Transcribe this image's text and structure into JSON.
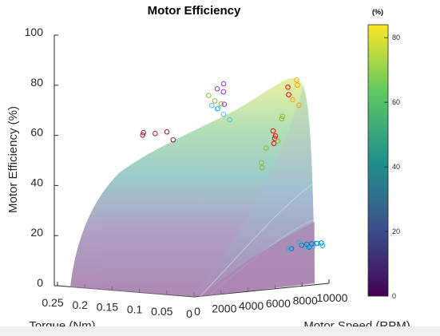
{
  "chart_data": {
    "type": "surface",
    "title": "Motor Efficiency",
    "xlabel": "Torque (Nm)",
    "ylabel": "Motor Speed (RPM)",
    "zlabel": "Motor Efficiency (%)",
    "torque_ticks": [
      "0.25",
      "0.2",
      "0.15",
      "0.1",
      "0.05",
      "0"
    ],
    "speed_ticks": [
      "0",
      "2000",
      "4000",
      "6000",
      "8000",
      "10000"
    ],
    "efficiency_ticks": [
      "0",
      "20",
      "40",
      "60",
      "80",
      "100"
    ],
    "torque_range": [
      0,
      0.25
    ],
    "speed_range": [
      0,
      10000
    ],
    "efficiency_range": [
      0,
      100
    ],
    "colorbar": {
      "title": "(%)",
      "ticks": [
        "0",
        "20",
        "40",
        "60",
        "80"
      ],
      "range": [
        0,
        84
      ],
      "colormap": [
        "#440154",
        "#3b528b",
        "#21908c",
        "#5dc863",
        "#fde725"
      ]
    },
    "measured_series": [
      {
        "color": "#ff0000",
        "points": [
          {
            "torque": 0.02,
            "speed": 8000,
            "efficiency": 79
          },
          {
            "torque": 0.02,
            "speed": 8000,
            "efficiency": 76
          },
          {
            "torque": 0.05,
            "speed": 8000,
            "efficiency": 61
          },
          {
            "torque": 0.05,
            "speed": 8000,
            "efficiency": 56
          },
          {
            "torque": 0.05,
            "speed": 8000,
            "efficiency": 58
          },
          {
            "torque": 0.05,
            "speed": 8000,
            "efficiency": 59
          }
        ]
      },
      {
        "color": "#ffa500",
        "points": [
          {
            "torque": 0.01,
            "speed": 8000,
            "efficiency": 82
          },
          {
            "torque": 0.01,
            "speed": 8000,
            "efficiency": 80
          },
          {
            "torque": 0.02,
            "speed": 8000,
            "efficiency": 74
          },
          {
            "torque": 0.01,
            "speed": 8000,
            "efficiency": 72
          }
        ]
      },
      {
        "color": "#9a2fc9",
        "points": [
          {
            "torque": 0.1,
            "speed": 6000,
            "efficiency": 80
          },
          {
            "torque": 0.1,
            "speed": 6000,
            "efficiency": 78
          },
          {
            "torque": 0.09,
            "speed": 6000,
            "efficiency": 77
          },
          {
            "torque": 0.09,
            "speed": 6000,
            "efficiency": 72
          }
        ]
      },
      {
        "color": "#7fbf30",
        "points": [
          {
            "torque": 0.12,
            "speed": 6000,
            "efficiency": 75
          },
          {
            "torque": 0.11,
            "speed": 6000,
            "efficiency": 73
          },
          {
            "torque": 0.1,
            "speed": 6000,
            "efficiency": 72
          },
          {
            "torque": 0.04,
            "speed": 8000,
            "efficiency": 66
          },
          {
            "torque": 0.04,
            "speed": 8000,
            "efficiency": 67
          },
          {
            "torque": 0.05,
            "speed": 8000,
            "efficiency": 57
          },
          {
            "torque": 0.06,
            "speed": 8000,
            "efficiency": 54
          },
          {
            "torque": 0.07,
            "speed": 8000,
            "efficiency": 48
          },
          {
            "torque": 0.07,
            "speed": 8000,
            "efficiency": 46
          }
        ]
      },
      {
        "color": "#4dbeee",
        "points": [
          {
            "torque": 0.12,
            "speed": 6000,
            "efficiency": 71
          },
          {
            "torque": 0.11,
            "speed": 6000,
            "efficiency": 70
          },
          {
            "torque": 0.1,
            "speed": 6000,
            "efficiency": 70
          },
          {
            "torque": 0.09,
            "speed": 6000,
            "efficiency": 68
          },
          {
            "torque": 0.08,
            "speed": 6000,
            "efficiency": 66
          }
        ]
      },
      {
        "color": "#a2142f",
        "points": [
          {
            "torque": 0.19,
            "speed": 4000,
            "efficiency": 59
          },
          {
            "torque": 0.19,
            "speed": 4000,
            "efficiency": 60
          },
          {
            "torque": 0.17,
            "speed": 4000,
            "efficiency": 60
          },
          {
            "torque": 0.15,
            "speed": 4000,
            "efficiency": 61
          },
          {
            "torque": 0.14,
            "speed": 4000,
            "efficiency": 58
          }
        ]
      },
      {
        "color": "#0072bd",
        "points": [
          {
            "torque": 0.01,
            "speed": 7500,
            "efficiency": 15
          },
          {
            "torque": 0.01,
            "speed": 8200,
            "efficiency": 16
          },
          {
            "torque": 0.01,
            "speed": 8700,
            "efficiency": 15
          },
          {
            "torque": 0.01,
            "speed": 9000,
            "efficiency": 16
          },
          {
            "torque": 0.01,
            "speed": 9300,
            "efficiency": 16
          },
          {
            "torque": 0.01,
            "speed": 9600,
            "efficiency": 16
          },
          {
            "torque": 0.01,
            "speed": 9900,
            "efficiency": 16
          }
        ]
      },
      {
        "color": "#1ab8e6",
        "points": [
          {
            "torque": 0.01,
            "speed": 7600,
            "efficiency": 15
          },
          {
            "torque": 0.01,
            "speed": 8300,
            "efficiency": 17
          },
          {
            "torque": 0.01,
            "speed": 8800,
            "efficiency": 15
          },
          {
            "torque": 0.01,
            "speed": 9200,
            "efficiency": 15
          },
          {
            "torque": 0.01,
            "speed": 9500,
            "efficiency": 16
          },
          {
            "torque": 0.01,
            "speed": 9800,
            "efficiency": 15
          }
        ]
      }
    ]
  }
}
